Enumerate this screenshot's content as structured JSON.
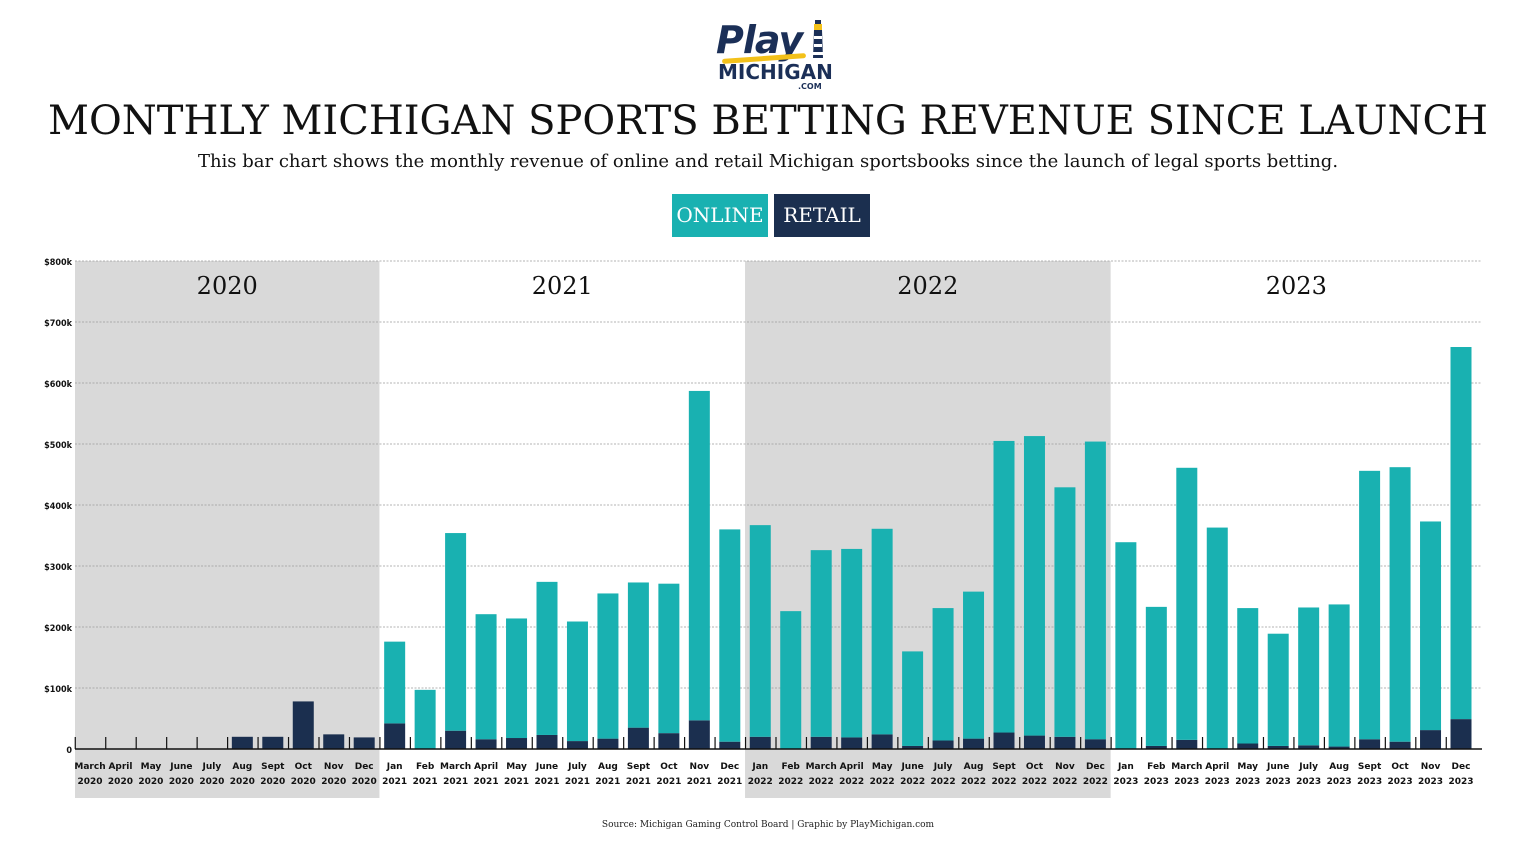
{
  "header": {
    "logo_text": "Play",
    "logo_sub": "MICHIGAN",
    "logo_domain": ".COM",
    "title": "MONTHLY MICHIGAN SPORTS BETTING REVENUE SINCE LAUNCH",
    "subtitle": "This bar chart shows the monthly revenue of online and retail Michigan sportsbooks since the launch of legal sports betting."
  },
  "legend": [
    {
      "label": "ONLINE",
      "color": "#19b1b1"
    },
    {
      "label": "RETAIL",
      "color": "#1b2f4f"
    }
  ],
  "footer": {
    "source": "Source: Michigan Gaming Control Board   |   Graphic by PlayMichigan.com"
  },
  "colors": {
    "online": "#19b1b1",
    "retail": "#1b2f4f",
    "band_shade": "#d9d9d9",
    "grid": "#9a9a9a"
  },
  "chart_data": {
    "type": "bar",
    "stacked": true,
    "title": "MONTHLY MICHIGAN SPORTS BETTING REVENUE SINCE LAUNCH",
    "xlabel": "",
    "ylabel": "",
    "ylim": [
      0,
      800000
    ],
    "yticks": [
      0,
      100000,
      200000,
      300000,
      400000,
      500000,
      600000,
      700000,
      800000
    ],
    "ytick_labels": [
      "0",
      "$100k",
      "$200k",
      "$300k",
      "$400k",
      "$500k",
      "$600k",
      "$700k",
      "$800k"
    ],
    "grid": true,
    "legend_position": "top-center",
    "year_bands": [
      {
        "label": "2020",
        "start_index": 0,
        "end_index": 9,
        "shaded": true
      },
      {
        "label": "2021",
        "start_index": 10,
        "end_index": 21,
        "shaded": false
      },
      {
        "label": "2022",
        "start_index": 22,
        "end_index": 33,
        "shaded": true
      },
      {
        "label": "2023",
        "start_index": 34,
        "end_index": 45,
        "shaded": false
      }
    ],
    "categories": [
      [
        "March",
        "2020"
      ],
      [
        "April",
        "2020"
      ],
      [
        "May",
        "2020"
      ],
      [
        "June",
        "2020"
      ],
      [
        "July",
        "2020"
      ],
      [
        "Aug",
        "2020"
      ],
      [
        "Sept",
        "2020"
      ],
      [
        "Oct",
        "2020"
      ],
      [
        "Nov",
        "2020"
      ],
      [
        "Dec",
        "2020"
      ],
      [
        "Jan",
        "2021"
      ],
      [
        "Feb",
        "2021"
      ],
      [
        "March",
        "2021"
      ],
      [
        "April",
        "2021"
      ],
      [
        "May",
        "2021"
      ],
      [
        "June",
        "2021"
      ],
      [
        "July",
        "2021"
      ],
      [
        "Aug",
        "2021"
      ],
      [
        "Sept",
        "2021"
      ],
      [
        "Oct",
        "2021"
      ],
      [
        "Nov",
        "2021"
      ],
      [
        "Dec",
        "2021"
      ],
      [
        "Jan",
        "2022"
      ],
      [
        "Feb",
        "2022"
      ],
      [
        "March",
        "2022"
      ],
      [
        "April",
        "2022"
      ],
      [
        "May",
        "2022"
      ],
      [
        "June",
        "2022"
      ],
      [
        "July",
        "2022"
      ],
      [
        "Aug",
        "2022"
      ],
      [
        "Sept",
        "2022"
      ],
      [
        "Oct",
        "2022"
      ],
      [
        "Nov",
        "2022"
      ],
      [
        "Dec",
        "2022"
      ],
      [
        "Jan",
        "2023"
      ],
      [
        "Feb",
        "2023"
      ],
      [
        "March",
        "2023"
      ],
      [
        "April",
        "2023"
      ],
      [
        "May",
        "2023"
      ],
      [
        "June",
        "2023"
      ],
      [
        "July",
        "2023"
      ],
      [
        "Aug",
        "2023"
      ],
      [
        "Sept",
        "2023"
      ],
      [
        "Oct",
        "2023"
      ],
      [
        "Nov",
        "2023"
      ],
      [
        "Dec",
        "2023"
      ]
    ],
    "series": [
      {
        "name": "RETAIL",
        "color": "#1b2f4f",
        "values": [
          0,
          0,
          0,
          0,
          0,
          20000,
          20000,
          78000,
          24000,
          19000,
          42000,
          0,
          30000,
          16000,
          18000,
          23000,
          13000,
          17000,
          35000,
          26000,
          47000,
          12000,
          20000,
          0,
          20000,
          19000,
          24000,
          5000,
          14000,
          17000,
          27000,
          22000,
          20000,
          16000,
          0,
          5000,
          15000,
          0,
          9000,
          5000,
          6000,
          4000,
          16000,
          12000,
          31000,
          49000
        ]
      },
      {
        "name": "ONLINE",
        "color": "#19b1b1",
        "values": [
          0,
          0,
          0,
          0,
          0,
          0,
          0,
          0,
          0,
          0,
          134000,
          97000,
          324000,
          205000,
          196000,
          251000,
          196000,
          238000,
          238000,
          245000,
          540000,
          348000,
          347000,
          226000,
          306000,
          309000,
          337000,
          155000,
          217000,
          241000,
          478000,
          491000,
          409000,
          488000,
          339000,
          228000,
          446000,
          363000,
          222000,
          184000,
          226000,
          233000,
          440000,
          450000,
          342000,
          610000
        ]
      }
    ]
  }
}
